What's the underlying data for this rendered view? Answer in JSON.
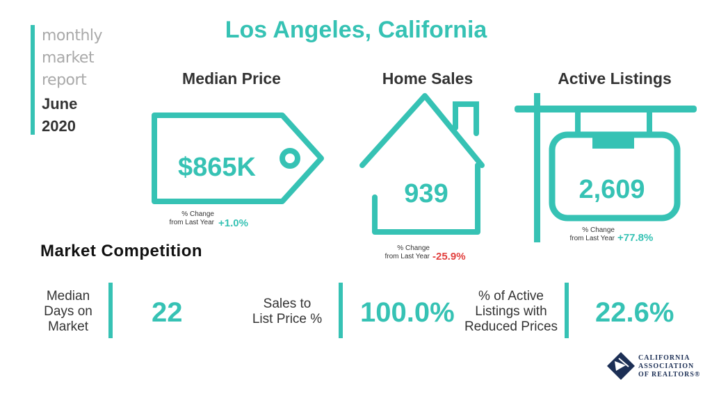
{
  "report": {
    "words": [
      "monthly",
      "market",
      "report"
    ],
    "month": "June",
    "year": "2020"
  },
  "title": "Los Angeles, California",
  "median_price": {
    "label": "Median Price",
    "value": "$865K",
    "change_label_1": "% Change",
    "change_label_2": "from Last Year",
    "change": "+1.0%"
  },
  "home_sales": {
    "label": "Home Sales",
    "value": "939",
    "change_label_1": "% Change",
    "change_label_2": "from Last Year",
    "change": "-25.9%"
  },
  "active_listings": {
    "label": "Active Listings",
    "value": "2,609",
    "change_label_1": "% Change",
    "change_label_2": "from Last Year",
    "change": "+77.8%"
  },
  "competition": {
    "title": "Market Competition",
    "items": [
      {
        "label_lines": [
          "Median",
          "Days on",
          "Market"
        ],
        "value": "22"
      },
      {
        "label_lines": [
          "Sales to",
          "List Price %"
        ],
        "value": "100.0%"
      },
      {
        "label_lines": [
          "% of Active",
          "Listings with",
          "Reduced Prices"
        ],
        "value": "22.6%"
      }
    ]
  },
  "logo": {
    "lines": [
      "CALIFORNIA",
      "ASSOCIATION",
      "OF REALTORS®"
    ]
  },
  "colors": {
    "accent": "#36c2b4",
    "negative": "#e2413f",
    "text": "#333333",
    "muted": "#a9a9a9",
    "logo": "#1c2f55"
  }
}
